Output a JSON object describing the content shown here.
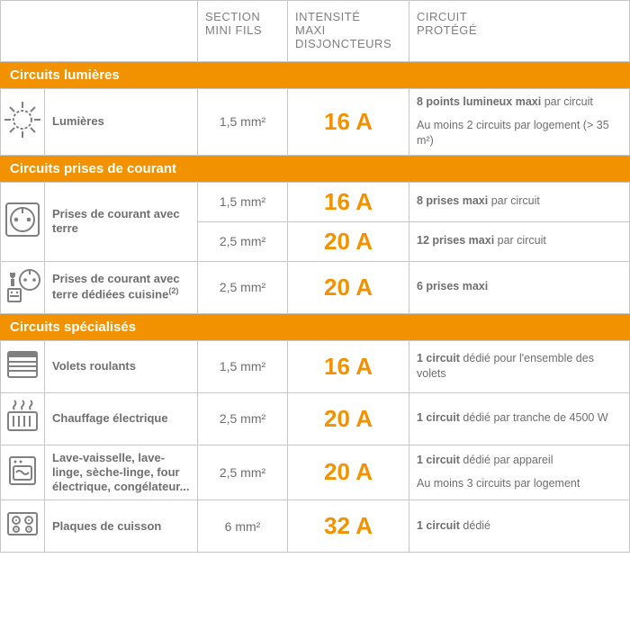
{
  "colors": {
    "accent": "#f39200",
    "text_grey": "#6f6f6f",
    "header_grey": "#808080",
    "border": "#c8c8c8",
    "background": "#ffffff",
    "section_text": "#ffffff"
  },
  "typography": {
    "header_fontsize": 13,
    "section_fontsize": 15,
    "name_fontsize": 13,
    "section_text_fontsize": 14,
    "amp_fontsize": 26,
    "prot_fontsize": 12.5
  },
  "columns": {
    "icon": "",
    "name": "",
    "section": "SECTION\nMINI FILS",
    "intensity": "INTENSITÉ\nMAXI\nDISJONCTEURS",
    "circuit": "CIRCUIT\nPROTÉGÉ"
  },
  "sections": [
    {
      "title": "Circuits lumières",
      "rows": [
        {
          "icon": "light",
          "name": "Lumières",
          "specs": [
            {
              "section_mm2": "1,5 mm²",
              "amp": "16 A",
              "protege": [
                {
                  "bold": "8 points lumineux maxi",
                  "rest": " par circuit"
                },
                {
                  "bold": "",
                  "rest": "Au moins 2 circuits par logement (> 35 m²)"
                }
              ]
            }
          ]
        }
      ]
    },
    {
      "title": "Circuits prises de courant",
      "rows": [
        {
          "icon": "outlet",
          "name": "Prises de courant avec terre",
          "specs": [
            {
              "section_mm2": "1,5 mm²",
              "amp": "16 A",
              "protege": [
                {
                  "bold": "8 prises maxi",
                  "rest": " par circuit"
                }
              ]
            },
            {
              "section_mm2": "2,5 mm²",
              "amp": "20 A",
              "protege": [
                {
                  "bold": "12 prises maxi",
                  "rest": " par circuit"
                }
              ]
            }
          ]
        },
        {
          "icon": "kitchen-outlet",
          "name": "Prises de courant avec terre dédiées cuisine",
          "name_sup": "(2)",
          "specs": [
            {
              "section_mm2": "2,5 mm²",
              "amp": "20 A",
              "protege": [
                {
                  "bold": "6 prises maxi",
                  "rest": ""
                }
              ]
            }
          ]
        }
      ]
    },
    {
      "title": "Circuits spécialisés",
      "rows": [
        {
          "icon": "shutter",
          "name": "Volets roulants",
          "specs": [
            {
              "section_mm2": "1,5 mm²",
              "amp": "16 A",
              "protege": [
                {
                  "bold": "1 circuit",
                  "rest": " dédié pour l'ensemble des volets"
                }
              ]
            }
          ]
        },
        {
          "icon": "heater",
          "name": "Chauffage électrique",
          "specs": [
            {
              "section_mm2": "2,5 mm²",
              "amp": "20 A",
              "protege": [
                {
                  "bold": "1 circuit",
                  "rest": " dédié par tranche de 4500 W"
                }
              ]
            }
          ]
        },
        {
          "icon": "appliances",
          "name": "Lave-vaisselle, lave-linge, sèche-linge, four électrique, congélateur...",
          "specs": [
            {
              "section_mm2": "2,5 mm²",
              "amp": "20 A",
              "protege": [
                {
                  "bold": "1 circuit",
                  "rest": " dédié par appareil"
                },
                {
                  "bold": "",
                  "rest": "Au moins 3 circuits par logement"
                }
              ]
            }
          ]
        },
        {
          "icon": "hob",
          "name": "Plaques de cuisson",
          "specs": [
            {
              "section_mm2": "6 mm²",
              "amp": "32 A",
              "protege": [
                {
                  "bold": "1 circuit",
                  "rest": " dédié"
                }
              ]
            }
          ]
        }
      ]
    }
  ]
}
